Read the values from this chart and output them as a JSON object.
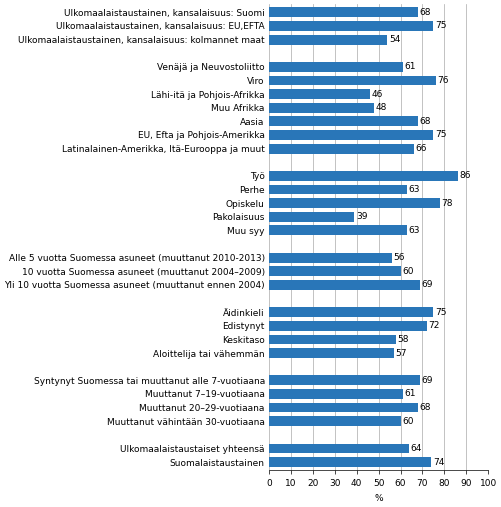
{
  "categories": [
    "Ulkomaalaistaustainen, kansalaisuus: Suomi",
    "Ulkomaalaistaustainen, kansalaisuus: EU,EFTA",
    "Ulkomaalaistaustainen, kansalaisuus: kolmannet maat",
    "",
    "Venäjä ja Neuvostoliitto",
    "Viro",
    "Lähi-itä ja Pohjois-Afrikka",
    "Muu Afrikka",
    "Aasia",
    "EU, Efta ja Pohjois-Amerikka",
    "Latinalainen-Amerikka, Itä-Eurooppa ja muut",
    "",
    "Työ",
    "Perhe",
    "Opiskelu",
    "Pakolaisuus",
    "Muu syy",
    "",
    "Alle 5 vuotta Suomessa asuneet (muuttanut 2010-2013)",
    "10 vuotta Suomessa asuneet (muuttanut 2004–2009)",
    "Yli 10 vuotta Suomessa asuneet (muuttanut ennen 2004)",
    "",
    "Äidinkieli",
    "Edistynyt",
    "Keskitaso",
    "Aloittelija tai vähemmän",
    "",
    "Syntynyt Suomessa tai muuttanut alle 7-vuotiaana",
    "Muuttanut 7–19-vuotiaana",
    "Muuttanut 20–29-vuotiaana",
    "Muuttanut vähintään 30-vuotiaana",
    "",
    "Ulkomaalaistaustaiset yhteensä",
    "Suomalaistaustainen"
  ],
  "values": [
    68,
    75,
    54,
    0,
    61,
    76,
    46,
    48,
    68,
    75,
    66,
    0,
    86,
    63,
    78,
    39,
    63,
    0,
    56,
    60,
    69,
    0,
    75,
    72,
    58,
    57,
    0,
    69,
    61,
    68,
    60,
    0,
    64,
    74
  ],
  "bar_color": "#2976b8",
  "xlabel": "%",
  "xlim": [
    0,
    100
  ],
  "xticks": [
    0,
    10,
    20,
    30,
    40,
    50,
    60,
    70,
    80,
    90,
    100
  ],
  "background_color": "#ffffff",
  "grid_color": "#aaaaaa",
  "bar_height": 0.72,
  "label_fontsize": 6.5,
  "value_fontsize": 6.5,
  "figwidth": 5.01,
  "figheight": 5.07,
  "dpi": 100
}
